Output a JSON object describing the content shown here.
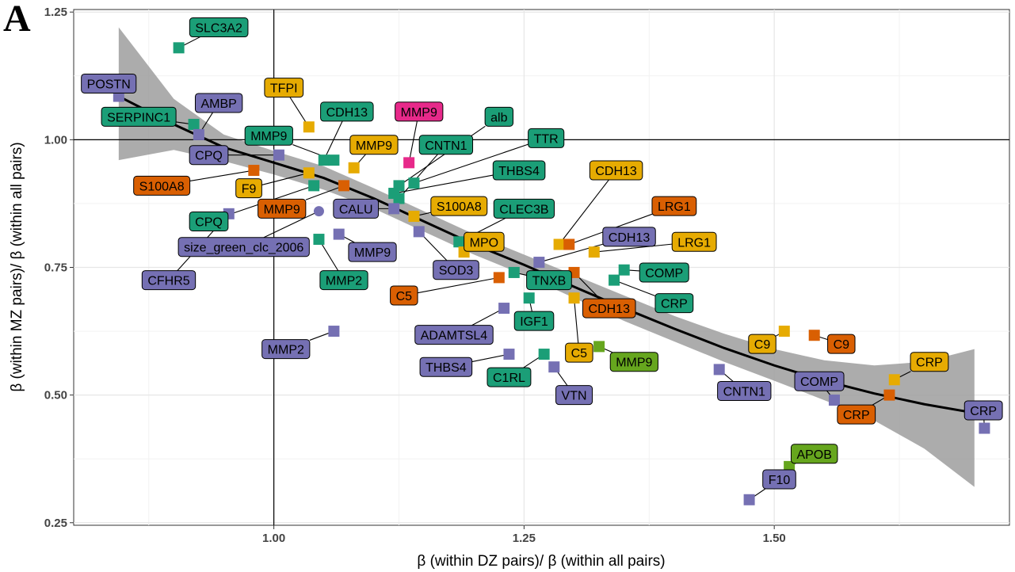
{
  "panel_letter": "A",
  "colors": {
    "teal": "#1b9e77",
    "purple": "#7570b3",
    "orange": "#d95f02",
    "yellow": "#e6ab02",
    "magenta": "#e7298a",
    "green": "#66a61e",
    "band": "#9e9e9e"
  },
  "chart_data": {
    "type": "scatter",
    "xlabel": "β (within DZ pairs)/ β (within all pairs)",
    "ylabel": "β (within MZ pairs)/ β (within all pairs)",
    "xlim": [
      0.8,
      1.735
    ],
    "ylim": [
      0.245,
      1.255
    ],
    "x_ticks": [
      1.0,
      1.25,
      1.5
    ],
    "x_tick_labels": [
      "1.00",
      "1.25",
      "1.50"
    ],
    "y_ticks": [
      0.25,
      0.5,
      0.75,
      1.0,
      1.25
    ],
    "y_tick_labels": [
      "0.25",
      "0.50",
      "0.75",
      "1.00",
      "1.25"
    ],
    "reference_lines": {
      "x": 1.0,
      "y": 1.0
    },
    "grid": true,
    "smooth_fit": [
      [
        0.845,
        1.085
      ],
      [
        0.9,
        1.03
      ],
      [
        0.95,
        0.985
      ],
      [
        1.0,
        0.955
      ],
      [
        1.05,
        0.925
      ],
      [
        1.1,
        0.885
      ],
      [
        1.15,
        0.84
      ],
      [
        1.2,
        0.795
      ],
      [
        1.25,
        0.755
      ],
      [
        1.3,
        0.712
      ],
      [
        1.35,
        0.67
      ],
      [
        1.4,
        0.63
      ],
      [
        1.45,
        0.592
      ],
      [
        1.5,
        0.558
      ],
      [
        1.55,
        0.528
      ],
      [
        1.6,
        0.503
      ],
      [
        1.65,
        0.482
      ],
      [
        1.7,
        0.465
      ]
    ],
    "smooth_ci_upper": [
      [
        0.845,
        1.22
      ],
      [
        0.9,
        1.08
      ],
      [
        0.95,
        1.01
      ],
      [
        1.0,
        0.978
      ],
      [
        1.05,
        0.948
      ],
      [
        1.1,
        0.905
      ],
      [
        1.15,
        0.86
      ],
      [
        1.2,
        0.815
      ],
      [
        1.25,
        0.775
      ],
      [
        1.3,
        0.735
      ],
      [
        1.35,
        0.695
      ],
      [
        1.4,
        0.655
      ],
      [
        1.45,
        0.62
      ],
      [
        1.5,
        0.59
      ],
      [
        1.55,
        0.568
      ],
      [
        1.6,
        0.558
      ],
      [
        1.65,
        0.565
      ],
      [
        1.7,
        0.59
      ]
    ],
    "smooth_ci_lower": [
      [
        0.845,
        0.96
      ],
      [
        0.9,
        0.98
      ],
      [
        0.95,
        0.958
      ],
      [
        1.0,
        0.932
      ],
      [
        1.05,
        0.902
      ],
      [
        1.1,
        0.865
      ],
      [
        1.15,
        0.82
      ],
      [
        1.2,
        0.775
      ],
      [
        1.25,
        0.735
      ],
      [
        1.3,
        0.69
      ],
      [
        1.35,
        0.645
      ],
      [
        1.4,
        0.605
      ],
      [
        1.45,
        0.565
      ],
      [
        1.5,
        0.528
      ],
      [
        1.55,
        0.49
      ],
      [
        1.6,
        0.45
      ],
      [
        1.65,
        0.395
      ],
      [
        1.7,
        0.32
      ]
    ],
    "points": [
      {
        "label": "SLC3A2",
        "x": 0.905,
        "y": 1.18,
        "c": "teal",
        "lx": 0.945,
        "ly": 1.22
      },
      {
        "label": "POSTN",
        "x": 0.845,
        "y": 1.085,
        "c": "purple",
        "lx": 0.835,
        "ly": 1.11
      },
      {
        "label": "SERPINC1",
        "x": 0.92,
        "y": 1.03,
        "c": "teal",
        "lx": 0.865,
        "ly": 1.045
      },
      {
        "label": "AMBP",
        "x": 0.925,
        "y": 1.01,
        "c": "purple",
        "lx": 0.945,
        "ly": 1.072
      },
      {
        "label": "TFPI",
        "x": 1.035,
        "y": 1.025,
        "c": "yellow",
        "lx": 1.01,
        "ly": 1.102
      },
      {
        "label": "CDH13",
        "x": 1.05,
        "y": 0.96,
        "c": "teal",
        "lx": 1.073,
        "ly": 1.055
      },
      {
        "label": "MMP9",
        "x": 1.135,
        "y": 0.955,
        "c": "magenta",
        "lx": 1.145,
        "ly": 1.055
      },
      {
        "label": "alb",
        "x": 1.125,
        "y": 0.91,
        "c": "teal",
        "lx": 1.225,
        "ly": 1.045
      },
      {
        "label": "MMP9",
        "x": 1.06,
        "y": 0.96,
        "c": "teal",
        "lx": 0.995,
        "ly": 1.008
      },
      {
        "label": "MMP9",
        "x": 1.08,
        "y": 0.945,
        "c": "yellow",
        "lx": 1.1,
        "ly": 0.99
      },
      {
        "label": "CNTN1",
        "x": 1.125,
        "y": 0.885,
        "c": "teal",
        "lx": 1.172,
        "ly": 0.99
      },
      {
        "label": "TTR",
        "x": 1.14,
        "y": 0.915,
        "c": "teal",
        "lx": 1.272,
        "ly": 1.003
      },
      {
        "label": "CPQ",
        "x": 1.005,
        "y": 0.97,
        "c": "purple",
        "lx": 0.935,
        "ly": 0.97
      },
      {
        "label": "S100A8",
        "x": 0.98,
        "y": 0.94,
        "c": "orange",
        "lx": 0.888,
        "ly": 0.91
      },
      {
        "label": "F9",
        "x": 1.035,
        "y": 0.935,
        "c": "yellow",
        "lx": 0.975,
        "ly": 0.905
      },
      {
        "label": "THBS4",
        "x": 1.12,
        "y": 0.895,
        "c": "teal",
        "lx": 1.245,
        "ly": 0.94
      },
      {
        "label": "CDH13",
        "x": 1.285,
        "y": 0.795,
        "c": "yellow",
        "lx": 1.342,
        "ly": 0.94
      },
      {
        "label": "CPQ",
        "x": 1.04,
        "y": 0.91,
        "c": "teal",
        "lx": 0.935,
        "ly": 0.84
      },
      {
        "label": "MMP9",
        "x": 1.07,
        "y": 0.91,
        "c": "orange",
        "lx": 1.008,
        "ly": 0.865
      },
      {
        "label": "CALU",
        "x": 1.12,
        "y": 0.865,
        "c": "purple",
        "lx": 1.082,
        "ly": 0.865
      },
      {
        "label": "S100A8",
        "x": 1.14,
        "y": 0.85,
        "c": "yellow",
        "lx": 1.185,
        "ly": 0.87
      },
      {
        "label": "CLEC3B",
        "x": 1.185,
        "y": 0.8,
        "c": "teal",
        "lx": 1.25,
        "ly": 0.865
      },
      {
        "label": "LRG1",
        "x": 1.295,
        "y": 0.795,
        "c": "orange",
        "lx": 1.4,
        "ly": 0.87
      },
      {
        "label": "size_green_clc_2006",
        "x": 1.045,
        "y": 0.86,
        "c": "purple",
        "shape": "circle",
        "lx": 0.97,
        "ly": 0.79
      },
      {
        "label": "MPO",
        "x": 1.19,
        "y": 0.78,
        "c": "yellow",
        "lx": 1.21,
        "ly": 0.8
      },
      {
        "label": "CDH13",
        "x": 1.265,
        "y": 0.76,
        "c": "purple",
        "lx": 1.355,
        "ly": 0.81
      },
      {
        "label": "LRG1",
        "x": 1.32,
        "y": 0.78,
        "c": "yellow",
        "lx": 1.42,
        "ly": 0.8
      },
      {
        "label": "CFHR5",
        "x": 0.955,
        "y": 0.855,
        "c": "purple",
        "lx": 0.895,
        "ly": 0.725
      },
      {
        "label": "MMP9",
        "x": 1.065,
        "y": 0.815,
        "c": "purple",
        "lx": 1.0985,
        "ly": 0.78
      },
      {
        "label": "MMP2",
        "x": 1.045,
        "y": 0.805,
        "c": "teal",
        "lx": 1.07,
        "ly": 0.725
      },
      {
        "label": "SOD3",
        "x": 1.145,
        "y": 0.82,
        "c": "purple",
        "lx": 1.182,
        "ly": 0.745
      },
      {
        "label": "C5",
        "x": 1.225,
        "y": 0.73,
        "c": "orange",
        "lx": 1.13,
        "ly": 0.695
      },
      {
        "label": "TNXB",
        "x": 1.24,
        "y": 0.74,
        "c": "teal",
        "lx": 1.275,
        "ly": 0.725
      },
      {
        "label": "COMP",
        "x": 1.35,
        "y": 0.745,
        "c": "teal",
        "lx": 1.39,
        "ly": 0.74
      },
      {
        "label": "CDH13",
        "x": 1.3,
        "y": 0.74,
        "c": "orange",
        "lx": 1.335,
        "ly": 0.67
      },
      {
        "label": "CRP",
        "x": 1.34,
        "y": 0.725,
        "c": "teal",
        "lx": 1.4,
        "ly": 0.68
      },
      {
        "label": "IGF1",
        "x": 1.255,
        "y": 0.69,
        "c": "teal",
        "lx": 1.26,
        "ly": 0.645
      },
      {
        "label": "ADAMTSL4",
        "x": 1.23,
        "y": 0.67,
        "c": "purple",
        "lx": 1.18,
        "ly": 0.618
      },
      {
        "label": "C5",
        "x": 1.3,
        "y": 0.69,
        "c": "yellow",
        "lx": 1.305,
        "ly": 0.583
      },
      {
        "label": "C9",
        "x": 1.51,
        "y": 0.625,
        "c": "yellow",
        "lx": 1.488,
        "ly": 0.6
      },
      {
        "label": "C9",
        "x": 1.54,
        "y": 0.617,
        "c": "orange",
        "lx": 1.567,
        "ly": 0.6
      },
      {
        "label": "MMP9",
        "x": 1.325,
        "y": 0.595,
        "c": "green",
        "lx": 1.36,
        "ly": 0.565
      },
      {
        "label": "MMP2",
        "x": 1.06,
        "y": 0.625,
        "c": "purple",
        "lx": 1.012,
        "ly": 0.59
      },
      {
        "label": "THBS4",
        "x": 1.235,
        "y": 0.58,
        "c": "purple",
        "lx": 1.172,
        "ly": 0.555
      },
      {
        "label": "C1RL",
        "x": 1.27,
        "y": 0.58,
        "c": "teal",
        "lx": 1.235,
        "ly": 0.535
      },
      {
        "label": "VTN",
        "x": 1.28,
        "y": 0.555,
        "c": "purple",
        "lx": 1.3,
        "ly": 0.5
      },
      {
        "label": "CNTN1",
        "x": 1.445,
        "y": 0.55,
        "c": "purple",
        "lx": 1.47,
        "ly": 0.508
      },
      {
        "label": "COMP",
        "x": 1.56,
        "y": 0.49,
        "c": "purple",
        "lx": 1.545,
        "ly": 0.527
      },
      {
        "label": "CRP",
        "x": 1.62,
        "y": 0.53,
        "c": "yellow",
        "lx": 1.655,
        "ly": 0.565
      },
      {
        "label": "CRP",
        "x": 1.615,
        "y": 0.5,
        "c": "orange",
        "lx": 1.582,
        "ly": 0.462
      },
      {
        "label": "CRP",
        "x": 1.71,
        "y": 0.435,
        "c": "purple",
        "lx": 1.709,
        "ly": 0.47
      },
      {
        "label": "APOB",
        "x": 1.515,
        "y": 0.36,
        "c": "green",
        "lx": 1.54,
        "ly": 0.385
      },
      {
        "label": "F10",
        "x": 1.475,
        "y": 0.295,
        "c": "purple",
        "lx": 1.505,
        "ly": 0.335
      }
    ]
  }
}
